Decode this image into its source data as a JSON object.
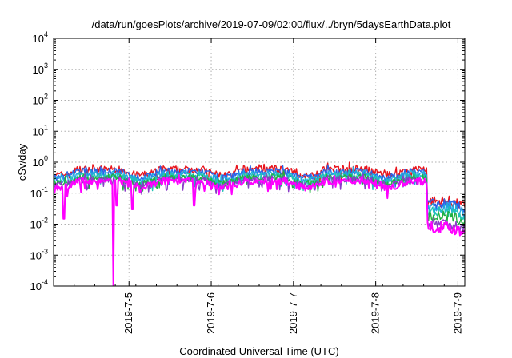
{
  "chart_data": {
    "type": "line",
    "title": "/data/run/goesPlots/archive/2019-07-09/02:00/flux/../bryn/5daysEarthData.plot",
    "xlabel": "Coordinated Universal Time (UTC)",
    "ylabel": "cSv/day",
    "y_scale": "log",
    "ylim": [
      0.0001,
      10000
    ],
    "y_ticks": [
      {
        "value": 0.0001,
        "base": "10",
        "exp": "-4"
      },
      {
        "value": 0.001,
        "base": "10",
        "exp": "-3"
      },
      {
        "value": 0.01,
        "base": "10",
        "exp": "-2"
      },
      {
        "value": 0.1,
        "base": "10",
        "exp": "-1"
      },
      {
        "value": 1,
        "base": "10",
        "exp": "0"
      },
      {
        "value": 10,
        "base": "10",
        "exp": "1"
      },
      {
        "value": 100,
        "base": "10",
        "exp": "2"
      },
      {
        "value": 1000,
        "base": "10",
        "exp": "3"
      },
      {
        "value": 10000,
        "base": "10",
        "exp": "4"
      }
    ],
    "xlim": [
      "2019-07-04 02:00",
      "2019-07-09 02:00"
    ],
    "x_ticks": [
      {
        "date": "2019-07-05",
        "label": "2019-7-5"
      },
      {
        "date": "2019-07-06",
        "label": "2019-7-6"
      },
      {
        "date": "2019-07-07",
        "label": "2019-7-7"
      },
      {
        "date": "2019-07-08",
        "label": "2019-7-8"
      },
      {
        "date": "2019-07-09",
        "label": "2019-7-9"
      }
    ],
    "grid": true,
    "legend": "none",
    "series": [
      {
        "color": "#e8141c",
        "baseline_before": 0.6,
        "baseline_after": 0.055
      },
      {
        "color": "#2b62e8",
        "baseline_before": 0.5,
        "baseline_after": 0.045
      },
      {
        "color": "#1fa8e0",
        "baseline_before": 0.42,
        "baseline_after": 0.035
      },
      {
        "color": "#21c4b4",
        "baseline_before": 0.36,
        "baseline_after": 0.025
      },
      {
        "color": "#20b040",
        "baseline_before": 0.32,
        "baseline_after": 0.018
      },
      {
        "color": "#8a3cc8",
        "baseline_before": 0.28,
        "baseline_after": 0.011
      },
      {
        "color": "#ff00ff",
        "baseline_before": 0.24,
        "baseline_after": 0.008
      }
    ],
    "step_change_date": "2019-07-08 15:00",
    "deep_dip": {
      "date": "2019-07-04 19:30",
      "value": 0.0001
    },
    "notable_dips": [
      {
        "date": "2019-07-04 05:00",
        "value": 0.015
      },
      {
        "date": "2019-07-04 20:30",
        "value": 0.04
      },
      {
        "date": "2019-07-05 01:00",
        "value": 0.03
      },
      {
        "date": "2019-07-05 19:00",
        "value": 0.04
      },
      {
        "date": "2019-07-08 15:30",
        "value": 0.007
      }
    ]
  }
}
